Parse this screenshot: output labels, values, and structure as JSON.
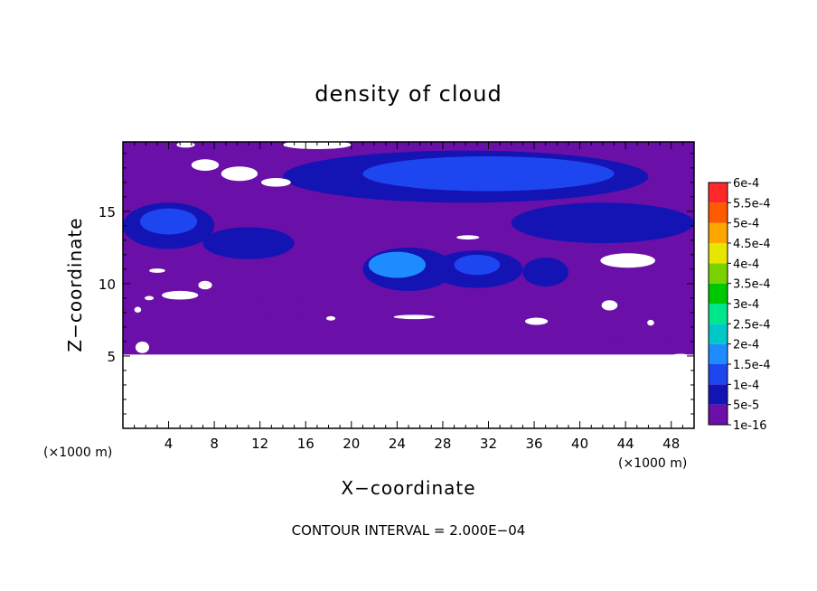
{
  "chart_data": {
    "type": "heatmap",
    "title": "density of cloud",
    "xlabel": "X−coordinate",
    "ylabel": "Z−coordinate",
    "x_unit": "(×1000 m)",
    "y_unit": "(×1000 m)",
    "xlim": [
      0,
      50
    ],
    "ylim": [
      0,
      19.8
    ],
    "x_ticks": [
      4,
      8,
      12,
      16,
      20,
      24,
      28,
      32,
      36,
      40,
      44,
      48
    ],
    "y_ticks": [
      5,
      10,
      15
    ],
    "colorbar": {
      "levels": [
        "1e-16",
        "5e-5",
        "1e-4",
        "1.5e-4",
        "2e-4",
        "2.5e-4",
        "3e-4",
        "3.5e-4",
        "4e-4",
        "4.5e-4",
        "5e-4",
        "5.5e-4",
        "6e-4"
      ],
      "colors": [
        "#6a0fa8",
        "#1414b4",
        "#1e46f0",
        "#1e8cff",
        "#00c8c8",
        "#00e68c",
        "#00c800",
        "#78d200",
        "#e6e600",
        "#ffa500",
        "#ff5a00",
        "#ff2828",
        "#ff8c8c"
      ]
    },
    "footer": "CONTOUR INTERVAL = 2.000E−04",
    "cloud_base_z": 5.1,
    "blobs": [
      {
        "x": 30,
        "z": 17.4,
        "rx": 16,
        "rz": 1.8,
        "level": 1
      },
      {
        "x": 32,
        "z": 17.6,
        "rx": 11,
        "rz": 1.2,
        "level": 2
      },
      {
        "x": 42,
        "z": 14.2,
        "rx": 8,
        "rz": 1.4,
        "level": 1
      },
      {
        "x": 4,
        "z": 14.0,
        "rx": 4,
        "rz": 1.6,
        "level": 1
      },
      {
        "x": 4,
        "z": 14.3,
        "rx": 2.5,
        "rz": 0.9,
        "level": 2
      },
      {
        "x": 11,
        "z": 12.8,
        "rx": 4,
        "rz": 1.1,
        "level": 1
      },
      {
        "x": 25,
        "z": 11.0,
        "rx": 4,
        "rz": 1.5,
        "level": 1
      },
      {
        "x": 24,
        "z": 11.3,
        "rx": 2.5,
        "rz": 0.9,
        "level": 3
      },
      {
        "x": 31,
        "z": 11.0,
        "rx": 4,
        "rz": 1.3,
        "level": 1
      },
      {
        "x": 31,
        "z": 11.3,
        "rx": 2,
        "rz": 0.7,
        "level": 2
      },
      {
        "x": 37,
        "z": 10.8,
        "rx": 2,
        "rz": 1.0,
        "level": 1
      },
      {
        "x": 14,
        "z": 8.3,
        "rx": 3,
        "rz": 0.7,
        "level": 0
      },
      {
        "x": 32,
        "z": 6.0,
        "rx": 3,
        "rz": 0.5,
        "level": 0
      },
      {
        "x": 45,
        "z": 6.0,
        "rx": 3,
        "rz": 0.4,
        "level": 0
      }
    ],
    "gaps": [
      {
        "x": 7.2,
        "z": 18.2,
        "rx": 1.2,
        "rz": 0.4
      },
      {
        "x": 10.2,
        "z": 17.6,
        "rx": 1.6,
        "rz": 0.5
      },
      {
        "x": 13.4,
        "z": 17.0,
        "rx": 1.3,
        "rz": 0.3
      },
      {
        "x": 5.5,
        "z": 19.6,
        "rx": 0.8,
        "rz": 0.2
      },
      {
        "x": 17,
        "z": 19.6,
        "rx": 3,
        "rz": 0.3
      },
      {
        "x": 3.0,
        "z": 10.9,
        "rx": 0.7,
        "rz": 0.15
      },
      {
        "x": 5.0,
        "z": 9.2,
        "rx": 1.6,
        "rz": 0.3
      },
      {
        "x": 7.2,
        "z": 9.9,
        "rx": 0.6,
        "rz": 0.3
      },
      {
        "x": 2.3,
        "z": 9.0,
        "rx": 0.4,
        "rz": 0.15
      },
      {
        "x": 1.3,
        "z": 8.2,
        "rx": 0.3,
        "rz": 0.2
      },
      {
        "x": 18.2,
        "z": 7.6,
        "rx": 0.4,
        "rz": 0.15
      },
      {
        "x": 25.5,
        "z": 7.7,
        "rx": 1.8,
        "rz": 0.15
      },
      {
        "x": 36.2,
        "z": 7.4,
        "rx": 1.0,
        "rz": 0.25
      },
      {
        "x": 30.2,
        "z": 13.2,
        "rx": 1.0,
        "rz": 0.15
      },
      {
        "x": 44.2,
        "z": 11.6,
        "rx": 2.4,
        "rz": 0.5
      },
      {
        "x": 42.6,
        "z": 8.5,
        "rx": 0.7,
        "rz": 0.35
      },
      {
        "x": 46.2,
        "z": 7.3,
        "rx": 0.3,
        "rz": 0.2
      },
      {
        "x": 1.7,
        "z": 5.6,
        "rx": 0.6,
        "rz": 0.4
      },
      {
        "x": 32.6,
        "z": 4.9,
        "rx": 0.7,
        "rz": 0.2
      },
      {
        "x": 48.8,
        "z": 5.0,
        "rx": 0.8,
        "rz": 0.15
      }
    ]
  }
}
